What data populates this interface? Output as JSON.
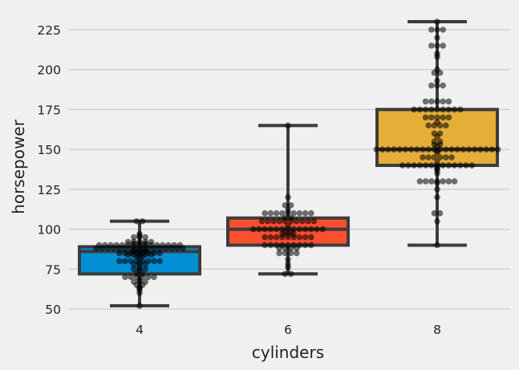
{
  "chart_data": {
    "type": "box",
    "xlabel": "cylinders",
    "ylabel": "horsepower",
    "ylim": [
      42,
      236
    ],
    "yticks": [
      50,
      75,
      100,
      125,
      150,
      175,
      200,
      225
    ],
    "grid": "horizontal",
    "boxes": [
      {
        "category": "4",
        "color": "#008fd5",
        "whisker_low": 52,
        "q1": 72,
        "median": 86,
        "q3": 89,
        "whisker_high": 105,
        "points": [
          [
            52,
            1
          ],
          [
            60,
            1
          ],
          [
            62,
            1
          ],
          [
            63,
            1
          ],
          [
            64,
            1
          ],
          [
            65,
            2
          ],
          [
            67,
            3
          ],
          [
            68,
            1
          ],
          [
            70,
            6
          ],
          [
            72,
            2
          ],
          [
            74,
            1
          ],
          [
            75,
            3
          ],
          [
            76,
            1
          ],
          [
            78,
            3
          ],
          [
            79,
            1
          ],
          [
            80,
            8
          ],
          [
            82,
            1
          ],
          [
            83,
            2
          ],
          [
            84,
            5
          ],
          [
            85,
            8
          ],
          [
            86,
            3
          ],
          [
            87,
            3
          ],
          [
            88,
            16
          ],
          [
            90,
            15
          ],
          [
            91,
            3
          ],
          [
            92,
            5
          ],
          [
            95,
            3
          ],
          [
            96,
            1
          ],
          [
            97,
            1
          ],
          [
            105,
            2
          ]
        ]
      },
      {
        "category": "6",
        "color": "#fc4f30",
        "whisker_low": 72,
        "q1": 90,
        "median": 100,
        "q3": 107,
        "whisker_high": 165,
        "points": [
          [
            72,
            2
          ],
          [
            76,
            1
          ],
          [
            78,
            1
          ],
          [
            81,
            1
          ],
          [
            85,
            4
          ],
          [
            88,
            4
          ],
          [
            90,
            9
          ],
          [
            95,
            9
          ],
          [
            97,
            3
          ],
          [
            98,
            2
          ],
          [
            100,
            13
          ],
          [
            102,
            1
          ],
          [
            105,
            10
          ],
          [
            107,
            2
          ],
          [
            110,
            9
          ],
          [
            112,
            1
          ],
          [
            115,
            2
          ],
          [
            120,
            1
          ],
          [
            165,
            1
          ]
        ]
      },
      {
        "category": "8",
        "color": "#e5ae38",
        "whisker_low": 90,
        "q1": 140,
        "median": 150,
        "q3": 175,
        "whisker_high": 230,
        "points": [
          [
            90,
            1
          ],
          [
            105,
            1
          ],
          [
            110,
            2
          ],
          [
            120,
            1
          ],
          [
            125,
            1
          ],
          [
            129,
            1
          ],
          [
            130,
            7
          ],
          [
            135,
            1
          ],
          [
            137,
            1
          ],
          [
            138,
            1
          ],
          [
            139,
            1
          ],
          [
            140,
            13
          ],
          [
            142,
            1
          ],
          [
            145,
            6
          ],
          [
            148,
            1
          ],
          [
            149,
            1
          ],
          [
            150,
            22
          ],
          [
            152,
            1
          ],
          [
            153,
            2
          ],
          [
            155,
            2
          ],
          [
            158,
            1
          ],
          [
            160,
            2
          ],
          [
            165,
            4
          ],
          [
            167,
            1
          ],
          [
            170,
            5
          ],
          [
            175,
            9
          ],
          [
            180,
            5
          ],
          [
            190,
            3
          ],
          [
            193,
            1
          ],
          [
            198,
            2
          ],
          [
            200,
            1
          ],
          [
            208,
            1
          ],
          [
            210,
            1
          ],
          [
            215,
            3
          ],
          [
            220,
            1
          ],
          [
            225,
            3
          ],
          [
            230,
            1
          ]
        ]
      }
    ]
  }
}
